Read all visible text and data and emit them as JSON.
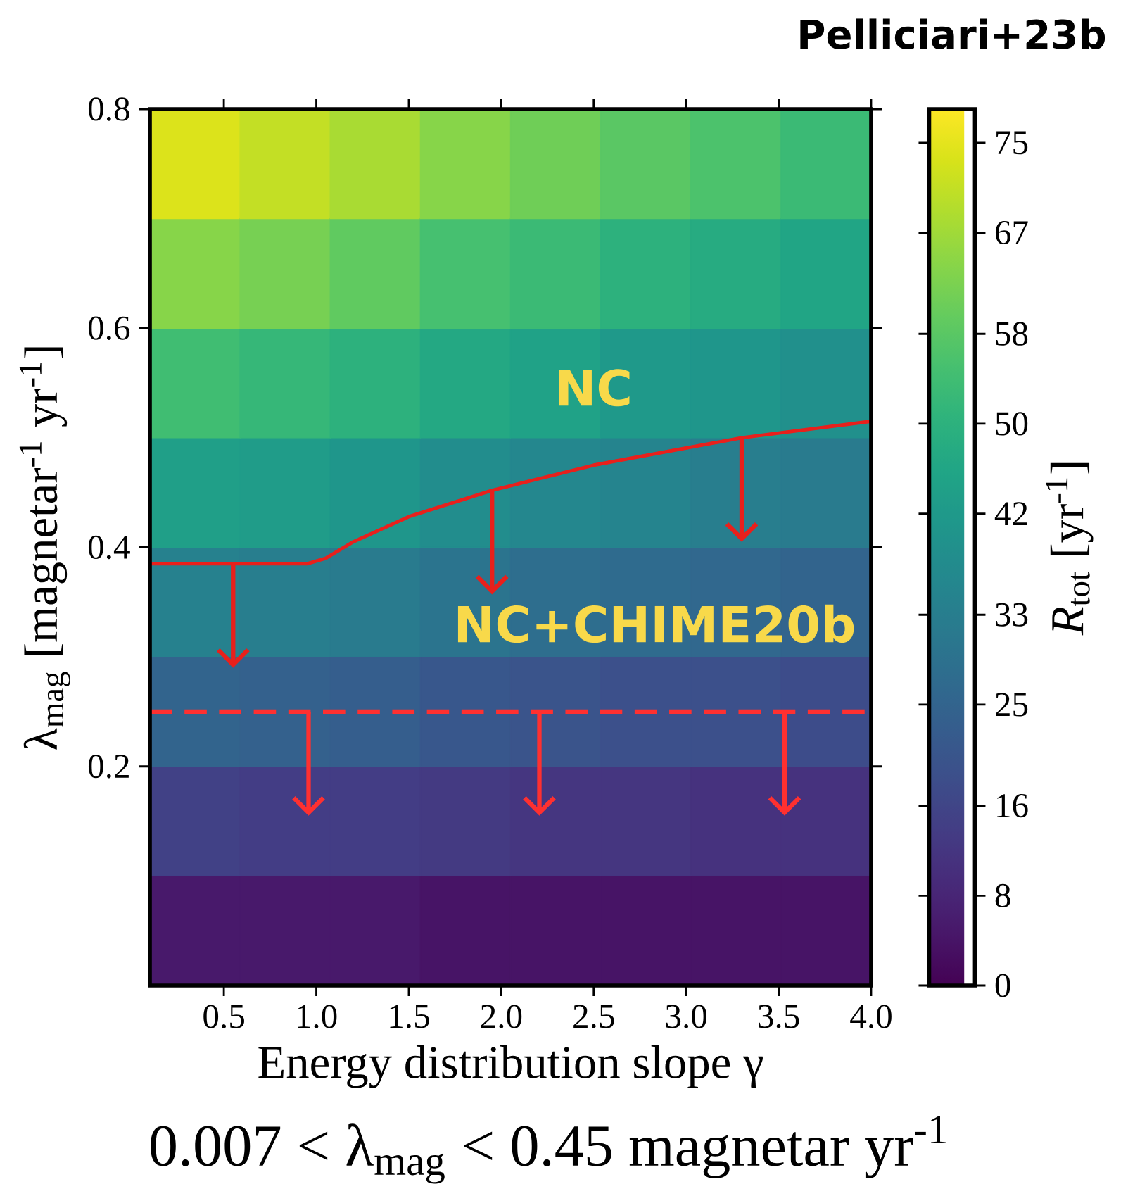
{
  "chart_data": {
    "type": "heatmap",
    "xlabel": "Energy distribution slope γ",
    "ylabel": "λ$_{mag}$ [magnetar$^{-1}$ yr$^{-1}$]",
    "clabel": "*R*$_{tot}$ [yr$^{-1}$]",
    "x": [
      0.34375,
      0.83125,
      1.31875,
      1.80625,
      2.29375,
      2.78125,
      3.26875,
      3.75625
    ],
    "y": [
      0.75,
      0.65,
      0.55,
      0.45,
      0.35,
      0.25,
      0.15,
      0.05
    ],
    "cells": [
      [
        74,
        71,
        68,
        64,
        61,
        58,
        56,
        53
      ],
      [
        64,
        62,
        59,
        55,
        53,
        50,
        48,
        46
      ],
      [
        54,
        52,
        50,
        47,
        45,
        42,
        41,
        39
      ],
      [
        44,
        43,
        41,
        38,
        36,
        35,
        33,
        32
      ],
      [
        34,
        33,
        32,
        30,
        28,
        27,
        26,
        25
      ],
      [
        25,
        24,
        23,
        21,
        20,
        19,
        19,
        18
      ],
      [
        15,
        14,
        14,
        13,
        12,
        12,
        11,
        11
      ],
      [
        5,
        5,
        5,
        4,
        4,
        4,
        4,
        4
      ]
    ],
    "clim": [
      0,
      78
    ],
    "cticks": [
      0,
      8,
      16,
      25,
      33,
      42,
      50,
      58,
      67,
      75
    ],
    "xlim": [
      0.1,
      4.0
    ],
    "xticks": [
      0.5,
      {
        "value": 1,
        "label": "1.0"
      },
      1.5,
      {
        "value": 2,
        "label": "2.0"
      },
      2.5,
      {
        "value": 3,
        "label": "3.0"
      },
      3.5,
      {
        "value": 4,
        "label": "4.0"
      }
    ],
    "ylim": [
      0.0,
      0.8
    ],
    "yticks": [
      0.2,
      0.4,
      0.6,
      0.8
    ],
    "series": [
      {
        "name": "NC",
        "type": "line",
        "color": "#e8201c",
        "x": [
          0.1,
          0.55,
          0.95,
          1.05,
          1.2,
          1.5,
          1.95,
          2.5,
          3.3,
          4.0
        ],
        "values": [
          0.385,
          0.385,
          0.385,
          0.39,
          0.405,
          0.428,
          0.452,
          0.475,
          0.5,
          0.515
        ]
      }
    ],
    "ref_lines": [
      {
        "axis": "y",
        "value": 0.25,
        "label": "NC+CHIME20b",
        "color": "#ff3030",
        "line_style": "dashed"
      }
    ],
    "annotations": [
      "Pelliciari+23b",
      "0.007 < λ$_{mag}$ < 0.45 magnetar yr$^{-1}$"
    ]
  }
}
